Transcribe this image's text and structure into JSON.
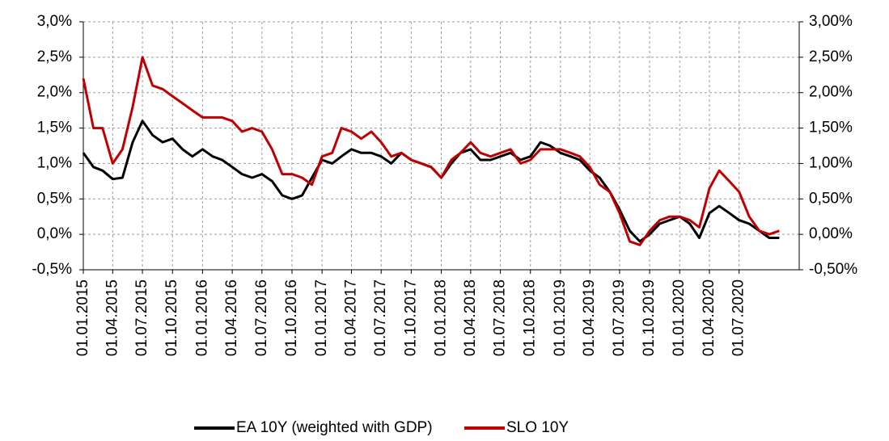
{
  "chart_data": {
    "type": "line",
    "x": [
      "01.01.2015",
      "01.02.2015",
      "01.03.2015",
      "01.04.2015",
      "01.05.2015",
      "01.06.2015",
      "01.07.2015",
      "01.08.2015",
      "01.09.2015",
      "01.10.2015",
      "01.11.2015",
      "01.12.2015",
      "01.01.2016",
      "01.02.2016",
      "01.03.2016",
      "01.04.2016",
      "01.05.2016",
      "01.06.2016",
      "01.07.2016",
      "01.08.2016",
      "01.09.2016",
      "01.10.2016",
      "01.11.2016",
      "01.12.2016",
      "01.01.2017",
      "01.02.2017",
      "01.03.2017",
      "01.04.2017",
      "01.05.2017",
      "01.06.2017",
      "01.07.2017",
      "01.08.2017",
      "01.09.2017",
      "01.10.2017",
      "01.11.2017",
      "01.12.2017",
      "01.01.2018",
      "01.02.2018",
      "01.03.2018",
      "01.04.2018",
      "01.05.2018",
      "01.06.2018",
      "01.07.2018",
      "01.08.2018",
      "01.09.2018",
      "01.10.2018",
      "01.11.2018",
      "01.12.2018",
      "01.01.2019",
      "01.02.2019",
      "01.03.2019",
      "01.04.2019",
      "01.05.2019",
      "01.06.2019",
      "01.07.2019",
      "01.08.2019",
      "01.09.2019",
      "01.10.2019",
      "01.11.2019",
      "01.12.2019",
      "01.01.2020",
      "01.02.2020",
      "01.03.2020",
      "01.04.2020",
      "01.05.2020",
      "01.06.2020",
      "01.07.2020",
      "01.08.2020",
      "01.09.2020",
      "01.10.2020",
      "01.11.2020"
    ],
    "series": [
      {
        "name": "EA 10Y (weighted with GDP)",
        "color": "#000000",
        "values": [
          1.15,
          0.95,
          0.9,
          0.78,
          0.8,
          1.3,
          1.6,
          1.4,
          1.3,
          1.35,
          1.2,
          1.1,
          1.2,
          1.1,
          1.05,
          0.95,
          0.85,
          0.8,
          0.85,
          0.75,
          0.55,
          0.5,
          0.55,
          0.8,
          1.05,
          1.0,
          1.1,
          1.2,
          1.15,
          1.15,
          1.1,
          1.0,
          1.15,
          1.05,
          1.0,
          0.95,
          0.8,
          1.0,
          1.15,
          1.2,
          1.05,
          1.05,
          1.1,
          1.15,
          1.05,
          1.1,
          1.3,
          1.25,
          1.15,
          1.1,
          1.05,
          0.9,
          0.8,
          0.6,
          0.35,
          0.05,
          -0.1,
          0.0,
          0.15,
          0.2,
          0.25,
          0.15,
          -0.05,
          0.3,
          0.4,
          0.3,
          0.2,
          0.15,
          0.05,
          -0.05,
          -0.05
        ]
      },
      {
        "name": "SLO 10Y",
        "color": "#c00000",
        "values": [
          2.2,
          1.5,
          1.5,
          1.0,
          1.2,
          1.8,
          2.5,
          2.1,
          2.05,
          1.95,
          1.85,
          1.75,
          1.65,
          1.65,
          1.65,
          1.6,
          1.45,
          1.5,
          1.45,
          1.2,
          0.85,
          0.85,
          0.8,
          0.7,
          1.1,
          1.15,
          1.5,
          1.45,
          1.35,
          1.45,
          1.3,
          1.1,
          1.15,
          1.05,
          1.0,
          0.95,
          0.8,
          1.05,
          1.15,
          1.3,
          1.15,
          1.1,
          1.15,
          1.2,
          1.0,
          1.05,
          1.2,
          1.2,
          1.2,
          1.15,
          1.1,
          0.95,
          0.7,
          0.6,
          0.3,
          -0.1,
          -0.15,
          0.05,
          0.2,
          0.25,
          0.25,
          0.2,
          0.1,
          0.65,
          0.9,
          0.75,
          0.6,
          0.25,
          0.05,
          0.0,
          0.05
        ]
      }
    ],
    "xlim": [
      "01.01.2015",
      "01.01.2021"
    ],
    "xticks": [
      "01.01.2015",
      "01.04.2015",
      "01.07.2015",
      "01.10.2015",
      "01.01.2016",
      "01.04.2016",
      "01.07.2016",
      "01.10.2016",
      "01.01.2017",
      "01.04.2017",
      "01.07.2017",
      "01.10.2017",
      "01.01.2018",
      "01.04.2018",
      "01.07.2018",
      "01.10.2018",
      "01.01.2019",
      "01.04.2019",
      "01.07.2019",
      "01.10.2019",
      "01.01.2020",
      "01.04.2020",
      "01.07.2020"
    ],
    "ylim": [
      -0.5,
      3.0
    ],
    "yticks": [
      {
        "value": 3.0,
        "label": "3,0%"
      },
      {
        "value": 2.5,
        "label": "2,5%"
      },
      {
        "value": 2.0,
        "label": "2,0%"
      },
      {
        "value": 1.5,
        "label": "1,5%"
      },
      {
        "value": 1.0,
        "label": "1,0%"
      },
      {
        "value": 0.5,
        "label": "0,5%"
      },
      {
        "value": 0.0,
        "label": "0,0%"
      },
      {
        "value": -0.5,
        "label": "-0,5%"
      }
    ],
    "y2lim": [
      -0.5,
      3.0
    ],
    "y2ticks": [
      {
        "value": 3.0,
        "label": "3,00%"
      },
      {
        "value": 2.5,
        "label": "2,50%"
      },
      {
        "value": 2.0,
        "label": "2,00%"
      },
      {
        "value": 1.5,
        "label": "1,50%"
      },
      {
        "value": 1.0,
        "label": "1,00%"
      },
      {
        "value": 0.5,
        "label": "0,50%"
      },
      {
        "value": 0.0,
        "label": "0,00%"
      },
      {
        "value": -0.5,
        "label": "-0,50%"
      }
    ],
    "grid": true
  }
}
